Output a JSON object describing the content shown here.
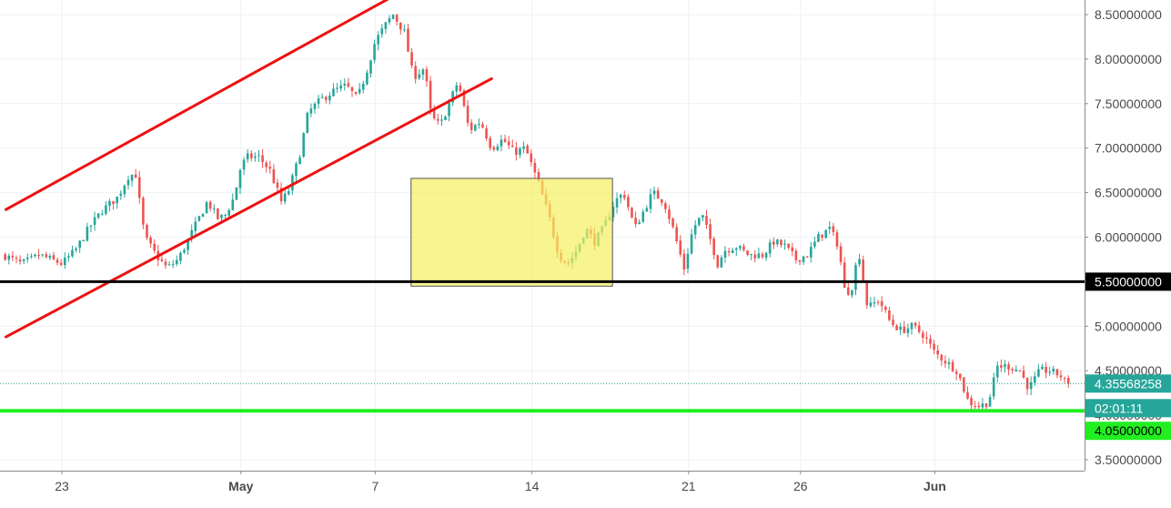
{
  "chart_data": {
    "type": "candlestick",
    "y_axis": {
      "ticks": [
        "3.50000000",
        "4.00000000",
        "4.50000000",
        "5.00000000",
        "5.50000000",
        "6.00000000",
        "6.50000000",
        "7.00000000",
        "7.50000000",
        "8.00000000",
        "8.50000000"
      ],
      "ylim": [
        3.2,
        8.72
      ]
    },
    "x_axis": {
      "ticks": [
        {
          "label": "23",
          "day": 0,
          "bold": false
        },
        {
          "label": "May",
          "day": 8,
          "bold": true
        },
        {
          "label": "7",
          "day": 14,
          "bold": false
        },
        {
          "label": "14",
          "day": 21,
          "bold": false
        },
        {
          "label": "21",
          "day": 28,
          "bold": false
        },
        {
          "label": "26",
          "day": 33,
          "bold": false
        },
        {
          "label": "Jun",
          "day": 39,
          "bold": true
        }
      ]
    },
    "price_labels": {
      "current": "4.35568258",
      "countdown": "02:01:11",
      "support_level": "4.05000000",
      "resistance_level": "5.50000000"
    },
    "levels": [
      {
        "name": "resistance-line",
        "value": 5.5,
        "color": "#000000"
      },
      {
        "name": "support-line",
        "value": 4.05,
        "color": "#22ee22"
      },
      {
        "name": "current-price-line",
        "value": 4.3557,
        "color": "#26a69a"
      }
    ],
    "channel": {
      "upper": [
        [
          -2.5,
          6.31
        ],
        [
          14.9,
          8.72
        ]
      ],
      "lower": [
        [
          -2.5,
          4.88
        ],
        [
          19.2,
          7.78
        ]
      ]
    },
    "consolidation_box": {
      "day_start": 15.6,
      "day_end": 24.6,
      "price_low": 5.45,
      "price_high": 6.66
    },
    "colors": {
      "up": "#26a69a",
      "down": "#ef5350",
      "channel": "#ee1111",
      "box_fill": "#f5ef60",
      "box_stroke": "#555555",
      "grid": "#eef2f4",
      "axis_text": "#4a4a4a"
    },
    "close_anchors": [
      [
        -2.6,
        5.8
      ],
      [
        -1.8,
        5.7
      ],
      [
        -1,
        5.8
      ],
      [
        0,
        5.7
      ],
      [
        0.6,
        5.85
      ],
      [
        1.2,
        6.1
      ],
      [
        1.8,
        6.3
      ],
      [
        2.5,
        6.45
      ],
      [
        3.0,
        6.7
      ],
      [
        3.3,
        6.7
      ],
      [
        3.7,
        6.0
      ],
      [
        4.2,
        5.8
      ],
      [
        4.7,
        5.65
      ],
      [
        5.2,
        5.75
      ],
      [
        5.6,
        5.95
      ],
      [
        6.1,
        6.2
      ],
      [
        6.5,
        6.4
      ],
      [
        7.0,
        6.2
      ],
      [
        7.3,
        6.25
      ],
      [
        7.7,
        6.45
      ],
      [
        8.0,
        6.8
      ],
      [
        8.3,
        6.9
      ],
      [
        8.8,
        6.9
      ],
      [
        9.3,
        6.75
      ],
      [
        9.8,
        6.4
      ],
      [
        10.1,
        6.5
      ],
      [
        10.6,
        6.9
      ],
      [
        11.0,
        7.4
      ],
      [
        11.6,
        7.55
      ],
      [
        12.2,
        7.65
      ],
      [
        12.7,
        7.7
      ],
      [
        13.2,
        7.55
      ],
      [
        13.6,
        7.85
      ],
      [
        14.0,
        8.2
      ],
      [
        14.5,
        8.4
      ],
      [
        14.8,
        8.5
      ],
      [
        15.3,
        8.3
      ],
      [
        15.7,
        7.8
      ],
      [
        16.2,
        7.9
      ],
      [
        16.5,
        7.35
      ],
      [
        16.9,
        7.25
      ],
      [
        17.3,
        7.5
      ],
      [
        17.7,
        7.75
      ],
      [
        18.2,
        7.2
      ],
      [
        18.7,
        7.3
      ],
      [
        19.2,
        7.0
      ],
      [
        19.7,
        7.1
      ],
      [
        20.2,
        6.95
      ],
      [
        20.7,
        7.0
      ],
      [
        21.3,
        6.6
      ],
      [
        21.8,
        6.2
      ],
      [
        22.2,
        5.8
      ],
      [
        22.6,
        5.7
      ],
      [
        23.0,
        5.85
      ],
      [
        23.4,
        6.1
      ],
      [
        23.8,
        5.95
      ],
      [
        24.2,
        6.1
      ],
      [
        24.7,
        6.4
      ],
      [
        25.1,
        6.5
      ],
      [
        25.6,
        6.1
      ],
      [
        26.0,
        6.3
      ],
      [
        26.4,
        6.5
      ],
      [
        26.9,
        6.4
      ],
      [
        27.3,
        6.1
      ],
      [
        27.8,
        5.65
      ],
      [
        28.2,
        6.1
      ],
      [
        28.6,
        6.25
      ],
      [
        29.0,
        5.95
      ],
      [
        29.3,
        5.7
      ],
      [
        29.6,
        5.85
      ],
      [
        30.1,
        5.9
      ],
      [
        30.7,
        5.8
      ],
      [
        31.3,
        5.8
      ],
      [
        31.8,
        5.95
      ],
      [
        32.3,
        5.9
      ],
      [
        32.8,
        5.75
      ],
      [
        33.3,
        5.8
      ],
      [
        33.8,
        6.0
      ],
      [
        34.3,
        6.1
      ],
      [
        34.7,
        5.9
      ],
      [
        35.0,
        5.35
      ],
      [
        35.3,
        5.45
      ],
      [
        35.6,
        5.85
      ],
      [
        36.0,
        5.2
      ],
      [
        36.5,
        5.3
      ],
      [
        37.0,
        5.05
      ],
      [
        37.5,
        4.95
      ],
      [
        38.0,
        5.0
      ],
      [
        38.5,
        4.9
      ],
      [
        39.0,
        4.7
      ],
      [
        39.5,
        4.6
      ],
      [
        40.0,
        4.5
      ],
      [
        40.5,
        4.15
      ],
      [
        41.0,
        4.1
      ],
      [
        41.4,
        4.15
      ],
      [
        41.8,
        4.55
      ],
      [
        42.3,
        4.55
      ],
      [
        42.8,
        4.5
      ],
      [
        43.2,
        4.3
      ],
      [
        43.7,
        4.5
      ],
      [
        44.1,
        4.5
      ],
      [
        44.6,
        4.45
      ],
      [
        44.9,
        4.35
      ],
      [
        45.1,
        4.36
      ]
    ]
  }
}
